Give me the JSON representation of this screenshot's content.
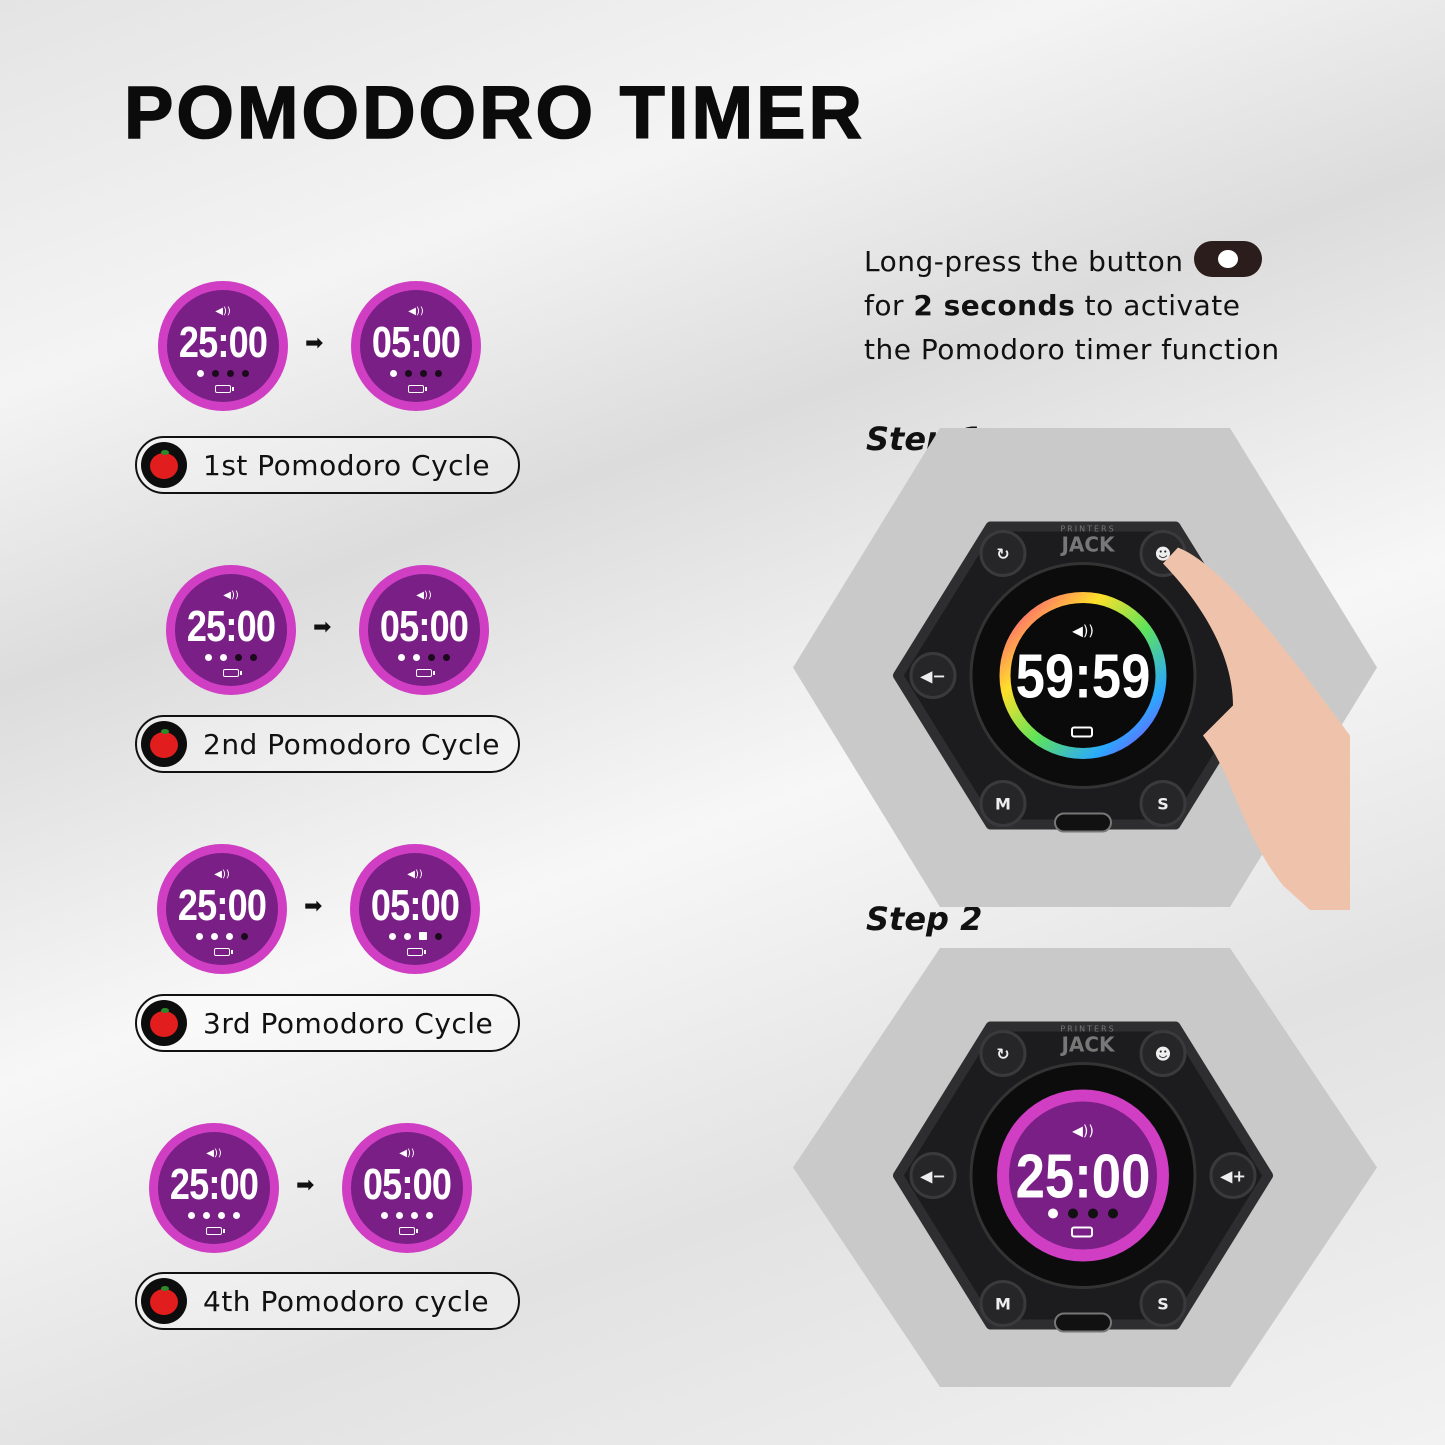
{
  "title": "POMODORO TIMER",
  "cycles": [
    {
      "label": "1st Pomodoro Cycle",
      "focus_time": "25:00",
      "break_time": "05:00",
      "focus_dots": [
        "white",
        "black",
        "black",
        "black"
      ],
      "break_dots": [
        "white",
        "black",
        "black",
        "black"
      ]
    },
    {
      "label": "2nd Pomodoro Cycle",
      "focus_time": "25:00",
      "break_time": "05:00",
      "focus_dots": [
        "white",
        "white",
        "black",
        "black"
      ],
      "break_dots": [
        "white",
        "white",
        "black",
        "black"
      ]
    },
    {
      "label": "3rd Pomodoro Cycle",
      "focus_time": "25:00",
      "break_time": "05:00",
      "focus_dots": [
        "white",
        "white",
        "white",
        "black"
      ],
      "break_dots": [
        "white",
        "white",
        "square",
        "black"
      ]
    },
    {
      "label": "4th Pomodoro cycle",
      "focus_time": "25:00",
      "break_time": "05:00",
      "focus_dots": [
        "white",
        "white",
        "white",
        "white"
      ],
      "break_dots": [
        "white",
        "white",
        "white",
        "white"
      ]
    }
  ],
  "colors": {
    "ring": "#cf3ec3",
    "face": "#7a1f86",
    "tomato": "#e11d1d"
  },
  "instructions": {
    "line1": "Long-press the button",
    "line2_pre": "for ",
    "line2_bold": "2 seconds",
    "line2_post": " to activate",
    "line3": "the Pomodoro timer function",
    "button_icon": "tomato-button-icon"
  },
  "steps": [
    {
      "label": "Step 1",
      "display": "59:59",
      "brand_top": "PRINTERS",
      "brand": "JACK",
      "buttons": [
        "reset",
        "pomodoro",
        "volume-down",
        "M",
        "S"
      ]
    },
    {
      "label": "Step 2",
      "display": "25:00",
      "brand_top": "PRINTERS",
      "brand": "JACK",
      "buttons": [
        "reset",
        "pomodoro",
        "volume-down",
        "volume-up",
        "M",
        "S"
      ]
    }
  ]
}
